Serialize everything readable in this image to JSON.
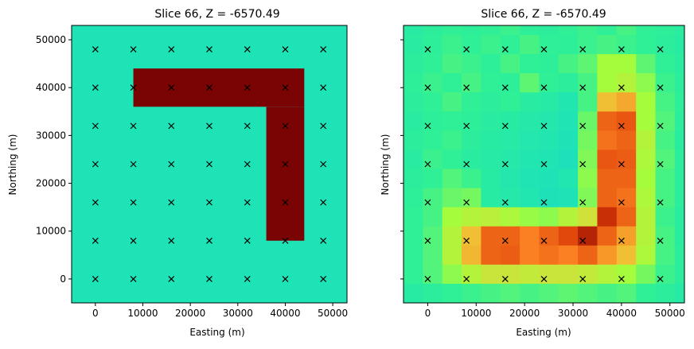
{
  "chart_data": [
    {
      "type": "heatmap",
      "title": "Slice 66, Z = -6570.49",
      "xlabel": "Easting (m)",
      "ylabel": "Northing (m)",
      "xlim": [
        -5000,
        53000
      ],
      "ylim": [
        -5000,
        53000
      ],
      "xticks": [
        0,
        10000,
        20000,
        30000,
        40000,
        50000
      ],
      "yticks": [
        0,
        10000,
        20000,
        30000,
        40000,
        50000
      ],
      "yticklabels_visible": true,
      "background_color": "#1ee3b6",
      "anomaly_color": "#7a0403",
      "anomaly_blocks": [
        {
          "x0": 8000,
          "x1": 44000,
          "y0": 36000,
          "y1": 44000
        },
        {
          "x0": 36000,
          "x1": 44000,
          "y0": 8000,
          "y1": 36000
        }
      ],
      "stations_x": [
        0,
        8000,
        16000,
        24000,
        32000,
        40000,
        48000
      ],
      "stations_y": [
        0,
        8000,
        16000,
        24000,
        32000,
        40000,
        48000
      ],
      "marker": "x"
    },
    {
      "type": "heatmap",
      "title": "Slice 66, Z = -6570.49",
      "xlabel": "Easting (m)",
      "ylabel": "Northing (m)",
      "xlim": [
        -5000,
        53000
      ],
      "ylim": [
        -5000,
        53000
      ],
      "xticks": [
        0,
        10000,
        20000,
        30000,
        40000,
        50000
      ],
      "yticks": [
        0,
        10000,
        20000,
        30000,
        40000,
        50000
      ],
      "yticklabels_visible": false,
      "grid_x0": -5000,
      "grid_y0": -5000,
      "cell_size": 4000,
      "colormap": "turbo",
      "cell_levels": [
        [
          0.46,
          0.48,
          0.5,
          0.49,
          0.5,
          0.51,
          0.49,
          0.48,
          0.5,
          0.51,
          0.5,
          0.52,
          0.5,
          0.49,
          0.47
        ],
        [
          0.47,
          0.49,
          0.51,
          0.5,
          0.51,
          0.5,
          0.52,
          0.5,
          0.49,
          0.51,
          0.52,
          0.51,
          0.5,
          0.48,
          0.46
        ],
        [
          0.48,
          0.5,
          0.52,
          0.51,
          0.49,
          0.52,
          0.5,
          0.49,
          0.52,
          0.54,
          0.6,
          0.6,
          0.54,
          0.5,
          0.47
        ],
        [
          0.49,
          0.51,
          0.5,
          0.52,
          0.5,
          0.49,
          0.54,
          0.5,
          0.48,
          0.52,
          0.6,
          0.62,
          0.58,
          0.51,
          0.48
        ],
        [
          0.48,
          0.5,
          0.52,
          0.5,
          0.48,
          0.5,
          0.47,
          0.45,
          0.42,
          0.52,
          0.72,
          0.75,
          0.6,
          0.52,
          0.49
        ],
        [
          0.47,
          0.49,
          0.5,
          0.49,
          0.47,
          0.46,
          0.44,
          0.43,
          0.41,
          0.55,
          0.84,
          0.86,
          0.6,
          0.53,
          0.48
        ],
        [
          0.48,
          0.5,
          0.51,
          0.48,
          0.46,
          0.45,
          0.43,
          0.42,
          0.4,
          0.56,
          0.82,
          0.84,
          0.62,
          0.52,
          0.47
        ],
        [
          0.47,
          0.51,
          0.5,
          0.47,
          0.45,
          0.44,
          0.42,
          0.41,
          0.39,
          0.57,
          0.86,
          0.85,
          0.61,
          0.53,
          0.48
        ],
        [
          0.48,
          0.5,
          0.53,
          0.51,
          0.46,
          0.43,
          0.41,
          0.4,
          0.42,
          0.58,
          0.84,
          0.84,
          0.6,
          0.52,
          0.48
        ],
        [
          0.49,
          0.52,
          0.55,
          0.56,
          0.46,
          0.44,
          0.42,
          0.39,
          0.4,
          0.57,
          0.84,
          0.82,
          0.61,
          0.52,
          0.48
        ],
        [
          0.5,
          0.52,
          0.6,
          0.62,
          0.63,
          0.61,
          0.59,
          0.58,
          0.62,
          0.66,
          0.92,
          0.84,
          0.62,
          0.51,
          0.47
        ],
        [
          0.5,
          0.53,
          0.62,
          0.72,
          0.84,
          0.84,
          0.8,
          0.84,
          0.88,
          0.94,
          0.84,
          0.76,
          0.62,
          0.52,
          0.47
        ],
        [
          0.5,
          0.53,
          0.62,
          0.73,
          0.84,
          0.85,
          0.8,
          0.82,
          0.8,
          0.84,
          0.77,
          0.72,
          0.61,
          0.52,
          0.48
        ],
        [
          0.5,
          0.53,
          0.58,
          0.62,
          0.65,
          0.65,
          0.64,
          0.65,
          0.65,
          0.64,
          0.62,
          0.6,
          0.56,
          0.51,
          0.48
        ],
        [
          0.46,
          0.48,
          0.5,
          0.51,
          0.52,
          0.53,
          0.52,
          0.53,
          0.54,
          0.53,
          0.52,
          0.53,
          0.5,
          0.48,
          0.45
        ]
      ],
      "stations_x": [
        0,
        8000,
        16000,
        24000,
        32000,
        40000,
        48000
      ],
      "stations_y": [
        0,
        8000,
        16000,
        24000,
        32000,
        40000,
        48000
      ],
      "marker": "x"
    }
  ]
}
